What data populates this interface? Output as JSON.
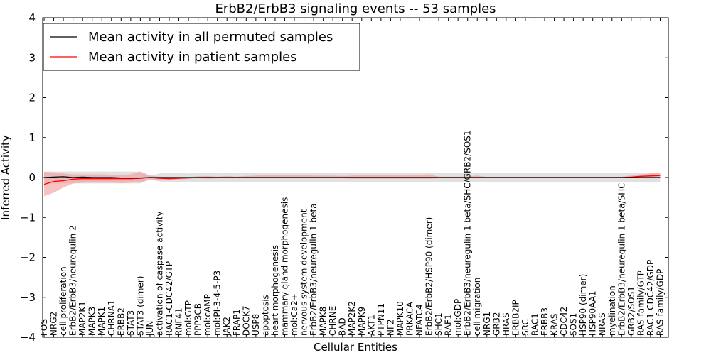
{
  "chart_data": {
    "type": "line",
    "title": "ErbB2/ErbB3 signaling events -- 53 samples",
    "xlabel": "Cellular Entities",
    "ylabel": "Inferred Activity",
    "ylim": [
      -4,
      4
    ],
    "yticks": [
      -4,
      -3,
      -2,
      -1,
      0,
      1,
      2,
      3,
      4
    ],
    "ytick_labels": [
      "−4",
      "−3",
      "−2",
      "−1",
      "0",
      "1",
      "2",
      "3",
      "4"
    ],
    "legend_position": "top-left",
    "categories": [
      "FOS",
      "NRG2",
      "cell proliferation",
      "ErbB2/ErbB3/neuregulin 2",
      "MAP2K1",
      "MAPK3",
      "MAPK1",
      "CHRNA1",
      "ERBB2",
      "STAT3",
      "STAT3 (dimer)",
      "JUN",
      "activation of caspase activity",
      "RAC1-CDC42/GTP",
      "RNF41",
      "mol:GTP",
      "PPP3CB",
      "mol:cAMP",
      "mol:PI-3-4-5-P3",
      "JAK2",
      "FRAP1",
      "DOCK7",
      "USP8",
      "apoptosis",
      "heart morphogenesis",
      "mammary gland morphogenesis",
      "mol:Ca2+",
      "nervous system development",
      "ErbB2/ErbB3/neuregulin 1 beta",
      "MAPK8",
      "CHRNE",
      "BAD",
      "MAP2K2",
      "MAPK9",
      "AKT1",
      "PTPN11",
      "NF2",
      "MAPK10",
      "PRKACA",
      "NFATC4",
      "ErbB2/ErbB2/HSP90 (dimer)",
      "SHC1",
      "RAF1",
      "mol:GDP",
      "ErbB2/ErbB3/neuregulin 1 beta/SHC/GRB2/SOS1",
      "cell migration",
      "NRG1",
      "GRB2",
      "HRAS",
      "ERBB2IP",
      "SRC",
      "RAC1",
      "ERBB3",
      "KRAS",
      "CDC42",
      "SOS1",
      "HSP90 (dimer)",
      "HSP90AA1",
      "NRAS",
      "myelination",
      "ErbB2/ErbB3/neuregulin 1 beta/SHC",
      "GRB2/SOS1",
      "RAS family/GTP",
      "RAC1-CDC42/GDP",
      "RAS family/GDP"
    ],
    "series": [
      {
        "name": "Mean activity in all permuted samples",
        "color": "#000000",
        "band_color": "#c8c8c8",
        "values": [
          0.0,
          0.01,
          0.02,
          0.0,
          0.01,
          0.0,
          0.0,
          0.0,
          -0.01,
          -0.01,
          -0.01,
          0.0,
          0.0,
          0.0,
          0.0,
          0.0,
          0.0,
          0.0,
          0.0,
          0.0,
          0.0,
          0.0,
          0.0,
          0.0,
          0.0,
          0.0,
          0.0,
          0.0,
          0.0,
          0.0,
          0.0,
          0.0,
          0.0,
          0.0,
          0.0,
          0.0,
          0.0,
          0.0,
          0.0,
          0.0,
          0.0,
          0.0,
          0.0,
          0.0,
          0.0,
          0.0,
          0.0,
          0.0,
          0.0,
          0.0,
          0.0,
          0.0,
          0.0,
          0.0,
          0.0,
          0.0,
          0.0,
          0.0,
          0.0,
          0.0,
          0.0,
          0.0,
          0.0,
          0.0,
          0.0
        ],
        "lower": [
          -0.15,
          -0.15,
          -0.15,
          -0.15,
          -0.15,
          -0.15,
          -0.15,
          -0.15,
          -0.15,
          -0.15,
          -0.15,
          -0.05,
          -0.1,
          -0.12,
          -0.12,
          -0.1,
          -0.12,
          -0.12,
          -0.12,
          -0.12,
          -0.12,
          -0.12,
          -0.12,
          -0.12,
          -0.12,
          -0.12,
          -0.12,
          -0.12,
          -0.12,
          -0.12,
          -0.12,
          -0.12,
          -0.12,
          -0.12,
          -0.12,
          -0.12,
          -0.12,
          -0.12,
          -0.12,
          -0.12,
          -0.12,
          -0.12,
          -0.12,
          -0.12,
          -0.12,
          -0.12,
          -0.12,
          -0.12,
          -0.12,
          -0.12,
          -0.12,
          -0.12,
          -0.12,
          -0.12,
          -0.12,
          -0.12,
          -0.12,
          -0.12,
          -0.12,
          -0.12,
          -0.12,
          -0.12,
          -0.12,
          -0.12,
          -0.12
        ],
        "upper": [
          0.15,
          0.15,
          0.15,
          0.15,
          0.15,
          0.15,
          0.15,
          0.15,
          0.15,
          0.15,
          0.15,
          0.05,
          0.1,
          0.12,
          0.12,
          0.1,
          0.12,
          0.12,
          0.12,
          0.12,
          0.12,
          0.12,
          0.12,
          0.12,
          0.12,
          0.12,
          0.12,
          0.12,
          0.12,
          0.12,
          0.12,
          0.12,
          0.12,
          0.12,
          0.12,
          0.12,
          0.12,
          0.12,
          0.12,
          0.12,
          0.12,
          0.12,
          0.12,
          0.12,
          0.12,
          0.12,
          0.12,
          0.12,
          0.12,
          0.12,
          0.12,
          0.12,
          0.12,
          0.12,
          0.12,
          0.12,
          0.12,
          0.12,
          0.12,
          0.12,
          0.12,
          0.12,
          0.12,
          0.12,
          0.12
        ]
      },
      {
        "name": "Mean activity in patient samples",
        "color": "#ff0000",
        "band_color": "#f49a9a",
        "values": [
          -0.17,
          -0.1,
          -0.08,
          -0.04,
          -0.03,
          -0.03,
          -0.03,
          -0.03,
          -0.03,
          -0.03,
          -0.02,
          0.0,
          -0.02,
          -0.03,
          -0.02,
          -0.01,
          0.0,
          0.0,
          0.0,
          0.0,
          0.0,
          0.0,
          0.0,
          0.0,
          0.0,
          0.0,
          0.0,
          0.0,
          0.0,
          0.0,
          0.0,
          0.0,
          0.0,
          0.0,
          0.0,
          0.0,
          0.0,
          0.0,
          0.0,
          0.0,
          0.0,
          0.0,
          0.0,
          0.0,
          0.0,
          0.0,
          0.0,
          0.0,
          0.0,
          0.0,
          0.0,
          0.0,
          0.0,
          0.0,
          0.0,
          0.0,
          0.0,
          0.0,
          0.0,
          0.0,
          0.0,
          0.01,
          0.03,
          0.04,
          0.05
        ],
        "lower": [
          -0.47,
          -0.38,
          -0.25,
          -0.15,
          -0.13,
          -0.13,
          -0.13,
          -0.13,
          -0.14,
          -0.13,
          -0.12,
          -0.05,
          -0.06,
          -0.06,
          -0.05,
          -0.03,
          -0.02,
          -0.03,
          -0.02,
          -0.02,
          -0.02,
          -0.02,
          -0.02,
          -0.02,
          -0.02,
          -0.02,
          -0.02,
          -0.02,
          -0.02,
          -0.02,
          -0.02,
          -0.02,
          -0.03,
          -0.03,
          -0.03,
          -0.03,
          -0.03,
          -0.03,
          -0.03,
          -0.03,
          -0.03,
          -0.02,
          -0.02,
          -0.02,
          -0.02,
          -0.02,
          -0.01,
          -0.01,
          -0.01,
          -0.01,
          -0.01,
          -0.01,
          -0.01,
          -0.01,
          -0.01,
          -0.01,
          -0.01,
          -0.01,
          -0.01,
          -0.01,
          -0.01,
          -0.01,
          -0.02,
          -0.02,
          -0.02
        ],
        "upper": [
          0.14,
          0.13,
          0.1,
          0.08,
          0.08,
          0.08,
          0.08,
          0.07,
          0.07,
          0.08,
          0.15,
          0.05,
          0.02,
          0.01,
          0.01,
          0.01,
          0.03,
          0.04,
          0.02,
          0.04,
          0.02,
          0.04,
          0.05,
          0.06,
          0.07,
          0.07,
          0.07,
          0.06,
          0.05,
          0.05,
          0.05,
          0.04,
          0.05,
          0.06,
          0.07,
          0.07,
          0.06,
          0.05,
          0.06,
          0.07,
          0.08,
          0.02,
          0.02,
          0.02,
          0.02,
          0.05,
          0.01,
          0.01,
          0.01,
          0.01,
          0.01,
          0.01,
          0.01,
          0.01,
          0.01,
          0.01,
          0.01,
          0.01,
          0.01,
          0.01,
          0.02,
          0.05,
          0.08,
          0.1,
          0.11
        ]
      }
    ]
  }
}
